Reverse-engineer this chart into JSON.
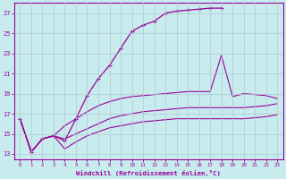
{
  "xlabel": "Windchill (Refroidissement éolien,°C)",
  "background_color": "#c8ecee",
  "line_color": "#990099",
  "grid_color": "#b0c8d0",
  "xlim": [
    -0.5,
    23.5
  ],
  "ylim": [
    12.5,
    28.0
  ],
  "yticks": [
    13,
    15,
    17,
    19,
    21,
    23,
    25,
    27
  ],
  "xticks": [
    0,
    1,
    2,
    3,
    4,
    5,
    6,
    7,
    8,
    9,
    10,
    11,
    12,
    13,
    14,
    15,
    16,
    17,
    18,
    19,
    20,
    21,
    22,
    23
  ],
  "line1_x": [
    0,
    1,
    2,
    3,
    4,
    5,
    6,
    7,
    8,
    9,
    10,
    11,
    12,
    13,
    14,
    15,
    16,
    17,
    18
  ],
  "line1_y": [
    16.5,
    13.2,
    14.5,
    14.8,
    14.3,
    16.5,
    18.8,
    20.5,
    21.8,
    23.5,
    25.2,
    25.8,
    26.2,
    27.0,
    27.2,
    27.3,
    27.4,
    27.5,
    27.5
  ],
  "line2_x": [
    0,
    1,
    2,
    3,
    4,
    5,
    6,
    7,
    8,
    9,
    10,
    11,
    12,
    13,
    14,
    15,
    16,
    17,
    18,
    19,
    20,
    21,
    22,
    23
  ],
  "line2_y": [
    16.5,
    13.2,
    14.5,
    14.8,
    15.8,
    16.5,
    17.2,
    17.8,
    18.2,
    18.5,
    18.7,
    18.8,
    18.9,
    19.0,
    19.1,
    19.2,
    19.2,
    19.2,
    22.8,
    18.7,
    19.0,
    18.9,
    18.8,
    18.5
  ],
  "line3_x": [
    0,
    1,
    2,
    3,
    4,
    5,
    6,
    7,
    8,
    9,
    10,
    11,
    12,
    13,
    14,
    15,
    16,
    17,
    18,
    19,
    20,
    21,
    22,
    23
  ],
  "line3_y": [
    16.5,
    13.2,
    14.5,
    14.8,
    14.5,
    15.0,
    15.5,
    16.0,
    16.5,
    16.8,
    17.0,
    17.2,
    17.3,
    17.4,
    17.5,
    17.6,
    17.6,
    17.6,
    17.6,
    17.6,
    17.6,
    17.7,
    17.8,
    18.0
  ],
  "line4_x": [
    0,
    1,
    2,
    3,
    4,
    5,
    6,
    7,
    8,
    9,
    10,
    11,
    12,
    13,
    14,
    15,
    16,
    17,
    18,
    19,
    20,
    21,
    22,
    23
  ],
  "line4_y": [
    16.5,
    13.2,
    14.5,
    14.8,
    13.5,
    14.2,
    14.8,
    15.2,
    15.6,
    15.8,
    16.0,
    16.2,
    16.3,
    16.4,
    16.5,
    16.5,
    16.5,
    16.5,
    16.5,
    16.5,
    16.5,
    16.6,
    16.7,
    16.9
  ]
}
